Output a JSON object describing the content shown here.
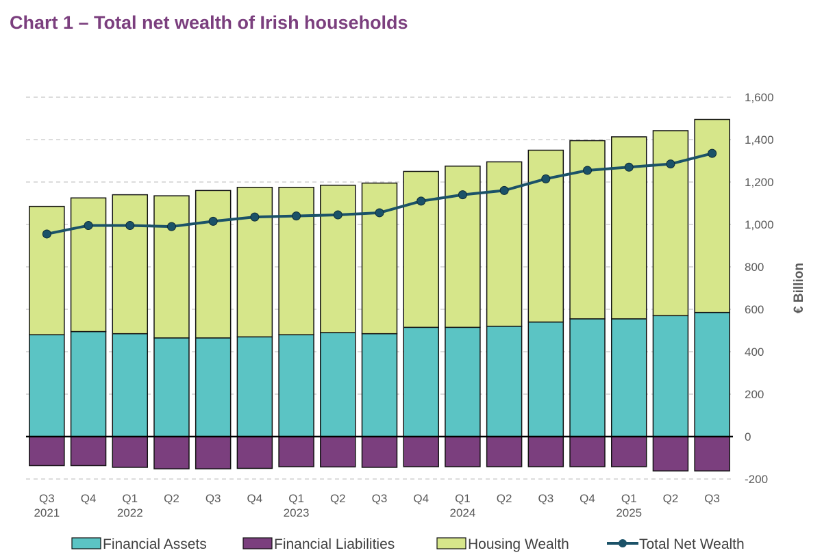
{
  "page": {
    "title": "Chart 1 – Total net wealth of Irish households"
  },
  "chart_data": {
    "type": "bar",
    "stacked": true,
    "title": "Chart 1 – Total net wealth of Irish households",
    "categories": [
      "Q3\n2021",
      "Q4",
      "Q1\n2022",
      "Q2",
      "Q3",
      "Q4",
      "Q1\n2023",
      "Q2",
      "Q3",
      "Q4",
      "Q1\n2024",
      "Q2",
      "Q3",
      "Q4",
      "Q1\n2025",
      "Q2",
      "Q3"
    ],
    "series": [
      {
        "name": "Financial Assets",
        "kind": "bar",
        "color": "#5BC4C4",
        "values": [
          480,
          495,
          485,
          465,
          465,
          470,
          480,
          490,
          485,
          515,
          515,
          520,
          540,
          555,
          555,
          570,
          585
        ]
      },
      {
        "name": "Financial Liabilities",
        "kind": "bar",
        "color": "#7B3F7E",
        "values": [
          -137,
          -137,
          -145,
          -152,
          -152,
          -150,
          -142,
          -143,
          -145,
          -142,
          -142,
          -142,
          -142,
          -142,
          -142,
          -162,
          -162
        ]
      },
      {
        "name": "Housing Wealth",
        "kind": "bar",
        "color": "#D6E68A",
        "values": [
          605,
          630,
          655,
          670,
          695,
          705,
          695,
          695,
          710,
          735,
          760,
          775,
          810,
          840,
          858,
          872,
          910
        ]
      },
      {
        "name": "Total Net Wealth",
        "kind": "line",
        "color": "#1B5268",
        "values": [
          955,
          995,
          995,
          990,
          1015,
          1035,
          1040,
          1045,
          1055,
          1110,
          1140,
          1160,
          1215,
          1255,
          1270,
          1285,
          1335
        ]
      }
    ],
    "ylabel": "€ Billion",
    "ylim": [
      -200,
      1600
    ],
    "yticks": [
      -200,
      0,
      200,
      400,
      600,
      800,
      1000,
      1200,
      1400,
      1600
    ],
    "ytick_labels": [
      "-200",
      "0",
      "200",
      "400",
      "600",
      "800",
      "1,000",
      "1,200",
      "1,400",
      "1,600"
    ],
    "y_axis_side": "right",
    "grid": true,
    "legend_position": "bottom"
  }
}
